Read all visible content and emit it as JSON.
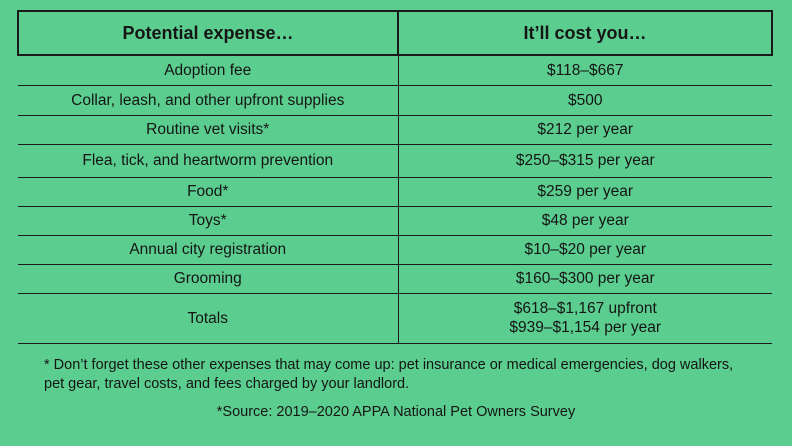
{
  "table": {
    "header": {
      "expense": "Potential expense…",
      "cost": "It’ll cost you…"
    },
    "rows": [
      {
        "expense": "Adoption fee",
        "cost": [
          "$118–$667"
        ]
      },
      {
        "expense": "Collar, leash, and other upfront supplies",
        "cost": [
          "$500"
        ]
      },
      {
        "expense": "Routine vet visits*",
        "cost": [
          "$212 per year"
        ]
      },
      {
        "expense": "Flea, tick, and heartworm prevention",
        "cost": [
          "$250–$315 per year"
        ]
      },
      {
        "expense": "Food*",
        "cost": [
          "$259 per year"
        ]
      },
      {
        "expense": "Toys*",
        "cost": [
          "$48 per year"
        ]
      },
      {
        "expense": "Annual city registration",
        "cost": [
          "$10–$20 per year"
        ]
      },
      {
        "expense": "Grooming",
        "cost": [
          "$160–$300 per year"
        ]
      },
      {
        "expense": "Totals",
        "cost": [
          "$618–$1,167 upfront",
          "$939–$1,154 per year"
        ]
      }
    ]
  },
  "footnote": "* Don’t forget these other expenses that may come up: pet insurance or medical emergencies, dog walkers, pet gear, travel costs, and fees charged by your landlord.",
  "source": "*Source: 2019–2020 APPA National Pet Owners Survey",
  "colors": {
    "background": "#5bce8f",
    "text": "#151515",
    "lines": "#1a1a1a"
  }
}
